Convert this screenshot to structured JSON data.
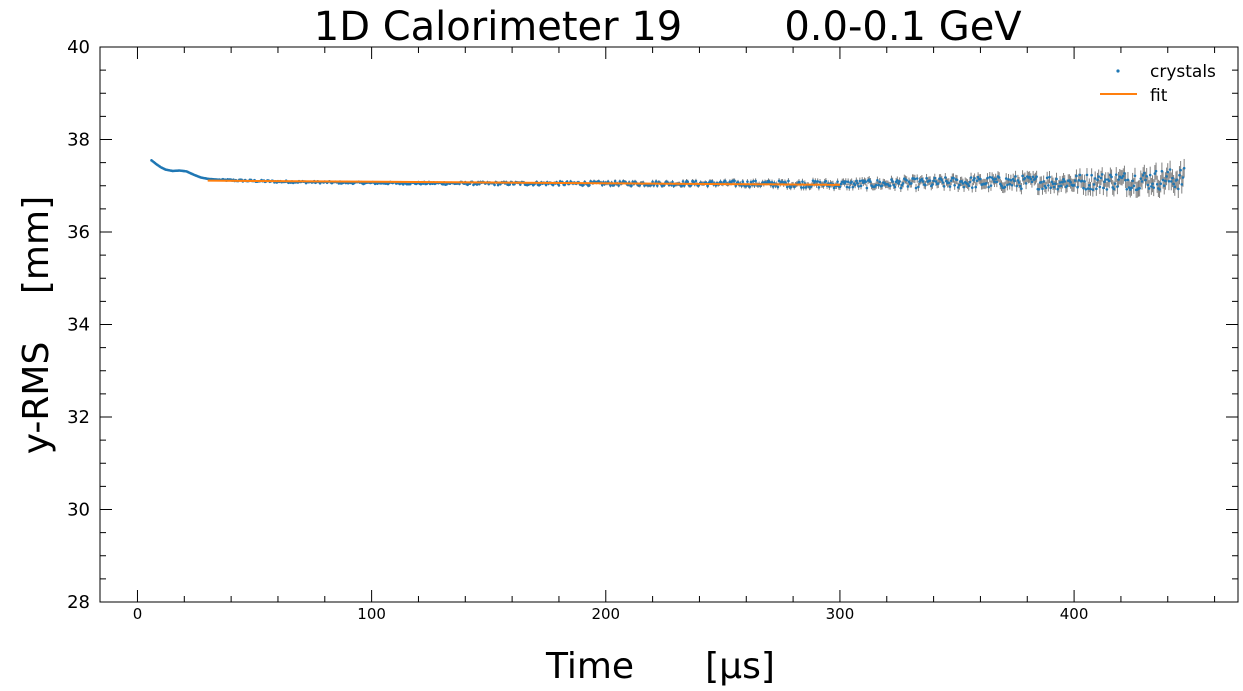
{
  "chart_data": {
    "type": "scatter",
    "title_left": "1D Calorimeter 19",
    "title_right": "0.0-0.1 GeV",
    "xlabel_text": "Time",
    "xlabel_unit": "[μs]",
    "ylabel_text": "y-RMS",
    "ylabel_unit": "[mm]",
    "xlim": [
      -16,
      470
    ],
    "ylim": [
      28,
      40
    ],
    "x_ticks": [
      0,
      100,
      200,
      300,
      400
    ],
    "x_tick_labels": [
      "0",
      "100",
      "200",
      "300",
      "400"
    ],
    "y_ticks": [
      28,
      30,
      32,
      34,
      36,
      38,
      40
    ],
    "y_tick_labels": [
      "28",
      "30",
      "32",
      "34",
      "36",
      "38",
      "40"
    ],
    "legend_placement": "top-right",
    "series": [
      {
        "name": "crystals",
        "style": "points-with-errorbars",
        "color": "#1f77b4",
        "errorbar_color": "#7f7f7f",
        "x_range": [
          6,
          447
        ],
        "description_points": [
          {
            "x": 6,
            "y": 37.55,
            "err": 0.01
          },
          {
            "x": 8,
            "y": 37.47,
            "err": 0.01
          },
          {
            "x": 10,
            "y": 37.4,
            "err": 0.01
          },
          {
            "x": 12,
            "y": 37.35,
            "err": 0.01
          },
          {
            "x": 15,
            "y": 37.32,
            "err": 0.01
          },
          {
            "x": 18,
            "y": 37.33,
            "err": 0.01
          },
          {
            "x": 21,
            "y": 37.31,
            "err": 0.01
          },
          {
            "x": 24,
            "y": 37.24,
            "err": 0.01
          },
          {
            "x": 27,
            "y": 37.18,
            "err": 0.01
          },
          {
            "x": 30,
            "y": 37.15,
            "err": 0.01
          },
          {
            "x": 35,
            "y": 37.13,
            "err": 0.01
          },
          {
            "x": 40,
            "y": 37.12,
            "err": 0.02
          },
          {
            "x": 60,
            "y": 37.09,
            "err": 0.02
          },
          {
            "x": 100,
            "y": 37.06,
            "err": 0.02
          },
          {
            "x": 150,
            "y": 37.05,
            "err": 0.03
          },
          {
            "x": 200,
            "y": 37.05,
            "err": 0.04
          },
          {
            "x": 250,
            "y": 37.05,
            "err": 0.05
          },
          {
            "x": 300,
            "y": 37.03,
            "err": 0.07
          },
          {
            "x": 350,
            "y": 37.07,
            "err": 0.1
          },
          {
            "x": 400,
            "y": 37.08,
            "err": 0.14
          },
          {
            "x": 447,
            "y": 37.15,
            "err": 0.2
          }
        ]
      },
      {
        "name": "fit",
        "style": "line",
        "color": "#ff7f0e",
        "x": [
          30,
          300
        ],
        "y": [
          37.11,
          37.02
        ]
      }
    ]
  }
}
